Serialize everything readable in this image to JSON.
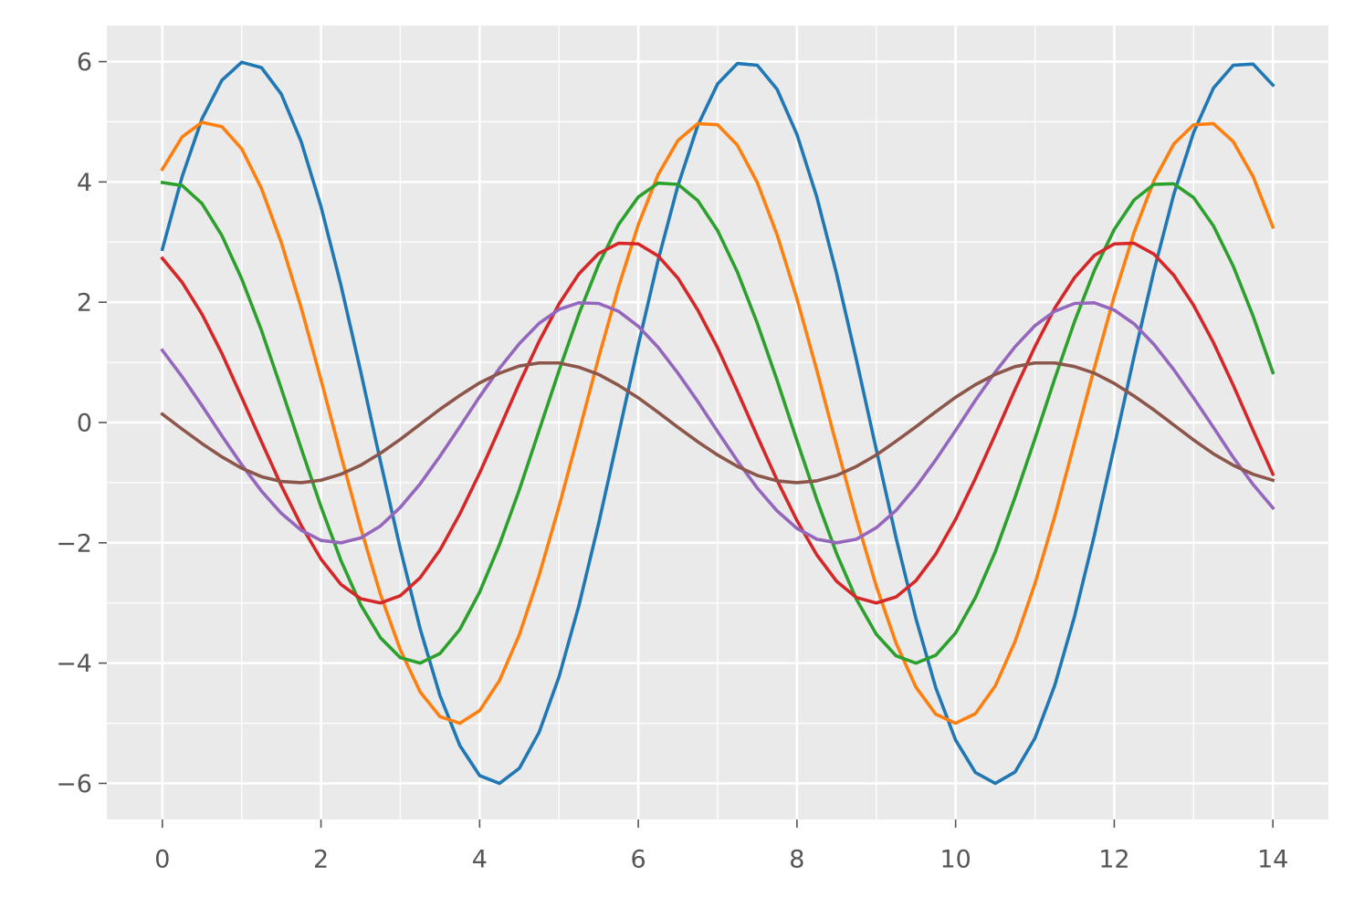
{
  "chart_data": {
    "type": "line",
    "x": [
      0,
      0.25,
      0.5,
      0.75,
      1,
      1.25,
      1.5,
      1.75,
      2,
      2.25,
      2.5,
      2.75,
      3,
      3.25,
      3.5,
      3.75,
      4,
      4.25,
      4.5,
      4.75,
      5,
      5.25,
      5.5,
      5.75,
      6,
      6.25,
      6.5,
      6.75,
      7,
      7.25,
      7.5,
      7.75,
      8,
      8.25,
      8.5,
      8.75,
      9,
      9.25,
      9.5,
      9.75,
      10,
      10.25,
      10.5,
      10.75,
      11,
      11.25,
      11.5,
      11.75,
      12,
      12.25,
      12.5,
      12.75,
      13,
      13.25,
      13.5,
      13.75,
      14
    ],
    "series": [
      {
        "color": "#1f77b4",
        "values": [
          2.88,
          4.09,
          5.05,
          5.69,
          5.99,
          5.9,
          5.46,
          4.67,
          3.59,
          2.29,
          0.85,
          -0.65,
          -2.1,
          -3.43,
          -4.54,
          -5.37,
          -5.87,
          -6.0,
          -5.75,
          -5.15,
          -4.23,
          -3.05,
          -1.68,
          -0.2,
          1.29,
          2.7,
          3.94,
          4.94,
          5.63,
          5.97,
          5.94,
          5.54,
          4.79,
          3.75,
          2.47,
          1.04,
          -0.45,
          -1.92,
          -3.26,
          -4.41,
          -5.28,
          -5.82,
          -6.0,
          -5.81,
          -5.25,
          -4.37,
          -3.22,
          -1.87,
          -0.4,
          1.1,
          2.52,
          3.79,
          4.82,
          5.56,
          5.94,
          5.96,
          5.61
        ]
      },
      {
        "color": "#ff7f0e",
        "values": [
          4.21,
          4.75,
          4.99,
          4.92,
          4.55,
          3.89,
          2.99,
          1.91,
          0.71,
          -0.54,
          -1.75,
          -2.86,
          -3.78,
          -4.48,
          -4.89,
          -5.0,
          -4.79,
          -4.29,
          -3.53,
          -2.54,
          -1.4,
          -0.17,
          1.08,
          2.25,
          3.29,
          4.12,
          4.69,
          4.97,
          4.95,
          4.61,
          3.99,
          3.12,
          2.06,
          0.87,
          -0.38,
          -1.6,
          -2.72,
          -3.67,
          -4.4,
          -4.85,
          -5.0,
          -4.84,
          -4.38,
          -3.64,
          -2.68,
          -1.56,
          -0.33,
          0.91,
          2.1,
          3.16,
          4.02,
          4.63,
          4.95,
          4.97,
          4.67,
          4.09,
          3.25
        ]
      },
      {
        "color": "#2ca02c",
        "values": [
          3.99,
          3.94,
          3.64,
          3.11,
          2.39,
          1.53,
          0.56,
          -0.43,
          -1.4,
          -2.29,
          -3.03,
          -3.58,
          -3.91,
          -4.0,
          -3.84,
          -3.44,
          -2.82,
          -2.03,
          -1.12,
          -0.13,
          0.86,
          1.8,
          2.63,
          3.29,
          3.75,
          3.98,
          3.96,
          3.69,
          3.19,
          2.5,
          1.65,
          0.7,
          -0.3,
          -1.28,
          -2.18,
          -2.94,
          -3.52,
          -3.88,
          -4.0,
          -3.87,
          -3.5,
          -2.91,
          -2.15,
          -1.24,
          -0.27,
          0.73,
          1.68,
          2.53,
          3.21,
          3.7,
          3.96,
          3.97,
          3.74,
          3.27,
          2.6,
          1.77,
          0.83
        ]
      },
      {
        "color": "#d62728",
        "values": [
          2.73,
          2.33,
          1.8,
          1.15,
          0.42,
          -0.32,
          -1.05,
          -1.71,
          -2.27,
          -2.69,
          -2.93,
          -3.0,
          -2.88,
          -2.58,
          -2.12,
          -1.52,
          -0.84,
          -0.1,
          0.65,
          1.35,
          1.97,
          2.47,
          2.81,
          2.98,
          2.97,
          2.77,
          2.4,
          1.87,
          1.24,
          0.52,
          -0.23,
          -0.96,
          -1.63,
          -2.2,
          -2.64,
          -2.91,
          -3.0,
          -2.9,
          -2.63,
          -2.19,
          -1.61,
          -0.93,
          -0.2,
          0.55,
          1.26,
          1.9,
          2.41,
          2.78,
          2.97,
          2.98,
          2.8,
          2.45,
          1.95,
          1.33,
          0.62,
          -0.13,
          -0.86
        ]
      },
      {
        "color": "#9467bd",
        "values": [
          1.2,
          0.76,
          0.28,
          -0.22,
          -0.7,
          -1.14,
          -1.51,
          -1.79,
          -1.96,
          -2.0,
          -1.92,
          -1.72,
          -1.41,
          -1.02,
          -0.56,
          -0.07,
          0.43,
          0.9,
          1.31,
          1.65,
          1.88,
          1.99,
          1.98,
          1.85,
          1.6,
          1.25,
          0.82,
          0.35,
          -0.15,
          -0.64,
          -1.09,
          -1.47,
          -1.76,
          -1.94,
          -2.0,
          -1.94,
          -1.75,
          -1.46,
          -1.07,
          -0.62,
          -0.13,
          0.37,
          0.84,
          1.26,
          1.61,
          1.85,
          1.98,
          1.99,
          1.87,
          1.64,
          1.3,
          0.88,
          0.41,
          -0.08,
          -0.58,
          -1.03,
          -1.42
        ]
      },
      {
        "color": "#8c564b",
        "values": [
          0.14,
          -0.11,
          -0.35,
          -0.57,
          -0.76,
          -0.9,
          -0.98,
          -1.0,
          -0.96,
          -0.86,
          -0.71,
          -0.51,
          -0.28,
          -0.03,
          0.22,
          0.45,
          0.66,
          0.82,
          0.94,
          0.99,
          0.99,
          0.92,
          0.8,
          0.62,
          0.41,
          0.17,
          -0.08,
          -0.32,
          -0.54,
          -0.73,
          -0.88,
          -0.97,
          -1.0,
          -0.97,
          -0.88,
          -0.73,
          -0.54,
          -0.31,
          -0.07,
          0.18,
          0.42,
          0.63,
          0.8,
          0.93,
          0.99,
          0.99,
          0.93,
          0.82,
          0.65,
          0.44,
          0.21,
          -0.04,
          -0.29,
          -0.52,
          -0.71,
          -0.86,
          -0.96
        ]
      }
    ],
    "xlim": [
      -0.7,
      14.7
    ],
    "ylim": [
      -6.6,
      6.6
    ],
    "xticks": [
      0,
      2,
      4,
      6,
      8,
      10,
      12,
      14
    ],
    "yticks": [
      {
        "value": -6,
        "label": "−6"
      },
      {
        "value": -4,
        "label": "−4"
      },
      {
        "value": -2,
        "label": "−2"
      },
      0,
      2,
      4,
      6
    ],
    "xminorticks": [
      1,
      3,
      5,
      7,
      9,
      11,
      13
    ],
    "yminorticks": [
      -5,
      -3,
      -1,
      1,
      3,
      5
    ],
    "grid": true
  }
}
